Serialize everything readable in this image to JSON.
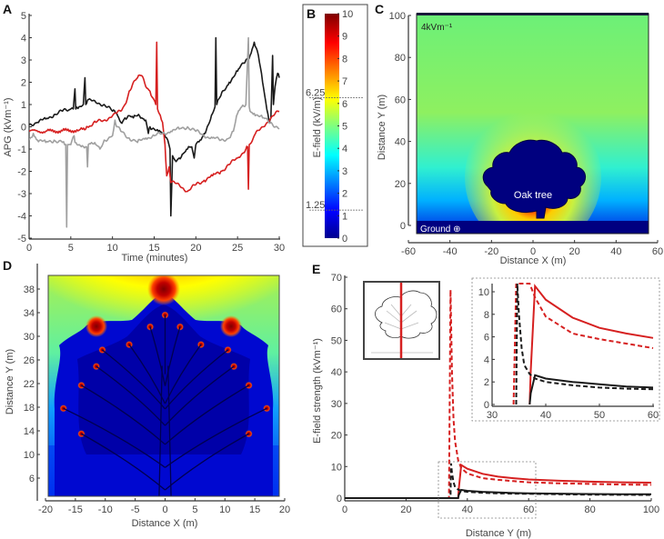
{
  "figure": {
    "panel_labels": [
      "A",
      "B",
      "C",
      "D",
      "E"
    ]
  },
  "chart_data": [
    {
      "panel": "A",
      "type": "line",
      "title": "",
      "xlabel": "Time (minutes)",
      "ylabel": "APG (kVm⁻¹)",
      "xlim": [
        0,
        30
      ],
      "ylim": [
        -5,
        5
      ],
      "xticks": [
        0,
        5,
        10,
        15,
        20,
        25,
        30
      ],
      "yticks": [
        5,
        4,
        3,
        2,
        1,
        0,
        -1,
        -2,
        -3,
        -4,
        -5
      ],
      "series": [
        {
          "name": "black trace",
          "color": "#1a1a1a",
          "x": [
            0,
            1,
            2,
            3,
            4,
            5,
            5.3,
            5.5,
            5.6,
            6,
            6.5,
            6.7,
            6.8,
            7,
            8,
            9,
            10,
            10.5,
            11,
            11.5,
            12,
            12.5,
            13,
            13.5,
            14,
            14.3,
            14.5,
            15,
            15.5,
            16,
            16.5,
            16.9,
            17,
            17.2,
            17.5,
            18,
            18.5,
            19,
            19.5,
            19.8,
            20,
            20.5,
            21,
            21.5,
            22,
            22.3,
            22.4,
            22.5,
            23,
            24,
            25,
            26,
            26.5,
            27,
            27.5,
            28,
            28.5,
            28.8,
            29,
            29.2,
            29.3,
            29.5,
            29.8,
            30
          ],
          "y": [
            0.1,
            0.2,
            0.35,
            0.55,
            0.7,
            0.8,
            0.8,
            1.7,
            0.8,
            0.9,
            1.0,
            2.2,
            1.0,
            1.2,
            1.1,
            1.0,
            0.7,
            0.6,
            0.2,
            0.4,
            0.5,
            0.4,
            0.5,
            0.4,
            0.3,
            -0.3,
            0.0,
            -0.1,
            -0.2,
            -0.3,
            -0.5,
            -1.0,
            -4.0,
            -1.3,
            -1.5,
            -1.4,
            -1.2,
            -1.0,
            -0.9,
            -1.4,
            -0.8,
            -0.6,
            -0.3,
            0.1,
            0.6,
            0.9,
            4.0,
            1.0,
            1.4,
            2.0,
            2.5,
            3.0,
            3.2,
            3.8,
            3.2,
            2.0,
            0.8,
            0.2,
            0.4,
            3.2,
            1.0,
            1.8,
            2.4,
            2.2
          ]
        },
        {
          "name": "red trace",
          "color": "#d62020",
          "x": [
            0,
            2,
            4,
            6,
            6.8,
            7,
            8,
            9,
            10,
            11,
            11.5,
            12,
            12.5,
            13,
            13.5,
            14,
            14.5,
            15,
            15.2,
            15.3,
            15.4,
            15.6,
            16,
            16.3,
            16.5,
            16.8,
            17,
            18,
            19,
            20,
            21,
            22,
            23,
            24,
            25,
            26,
            26.2,
            26.3,
            26.4,
            27,
            28,
            29,
            30
          ],
          "y": [
            -0.2,
            -0.2,
            -0.18,
            -0.15,
            -0.1,
            0.0,
            0.2,
            0.3,
            0.5,
            0.7,
            1.0,
            1.6,
            2.0,
            2.2,
            2.3,
            1.8,
            1.6,
            1.2,
            1.0,
            3.8,
            0.8,
            0.6,
            0.2,
            -0.8,
            -2.2,
            -1.8,
            -2.5,
            -2.6,
            -2.9,
            -2.6,
            -2.4,
            -2.2,
            -2.0,
            -1.7,
            -1.4,
            -1.0,
            -0.9,
            -2.8,
            -0.8,
            -0.4,
            0.0,
            0.4,
            0.7
          ]
        },
        {
          "name": "grey trace",
          "color": "#a0a0a0",
          "x": [
            0,
            0.5,
            1,
            2,
            3,
            4,
            4.4,
            4.5,
            4.6,
            5,
            5.4,
            5.5,
            6,
            6.9,
            7,
            7.1,
            8,
            8.5,
            9,
            10,
            10.3,
            10.5,
            11,
            12,
            13,
            14,
            15,
            16,
            17,
            18,
            19,
            20,
            21,
            22,
            23,
            24,
            24.5,
            25,
            25.5,
            26,
            26.3,
            26.4,
            26.5,
            27,
            28,
            29,
            30
          ],
          "y": [
            -0.6,
            -0.3,
            -0.6,
            -0.7,
            -0.6,
            -0.7,
            -0.8,
            -4.5,
            -0.8,
            -0.8,
            -0.4,
            -0.7,
            -0.8,
            -0.9,
            -1.8,
            -0.8,
            -0.8,
            -1.0,
            -0.6,
            -0.4,
            0.3,
            0.0,
            -0.2,
            -0.5,
            -0.7,
            -0.5,
            -0.4,
            -0.3,
            -0.2,
            -0.1,
            0.0,
            -0.2,
            -0.4,
            -0.5,
            -0.6,
            -0.5,
            -0.2,
            0.6,
            0.9,
            1.0,
            4.0,
            0.9,
            0.7,
            0.6,
            0.4,
            0.2,
            -0.1
          ]
        }
      ]
    },
    {
      "panel": "B",
      "type": "colorbar",
      "ylabel": "E-field (kV/m)",
      "range": [
        0,
        10
      ],
      "ticks": [
        0,
        1,
        2,
        3,
        4,
        5,
        6,
        7,
        8,
        9,
        10
      ],
      "markers": [
        {
          "label": "6.25",
          "value": 6.25
        },
        {
          "label": "1.25",
          "value": 1.25
        }
      ],
      "colormap": "jet"
    },
    {
      "panel": "C",
      "type": "heatmap",
      "xlabel": "Distance X (m)",
      "ylabel": "Distance Y (m)",
      "xlim": [
        -60,
        60
      ],
      "ylim": [
        -5,
        100
      ],
      "xticks": [
        -60,
        -40,
        -20,
        0,
        20,
        40,
        60
      ],
      "yticks": [
        0,
        20,
        40,
        60,
        80,
        100
      ],
      "annotations": [
        "4kVm⁻¹",
        "Oak tree",
        "Ground ⊕"
      ],
      "ambient_field_kV_per_m": 4
    },
    {
      "panel": "D",
      "type": "heatmap",
      "xlabel": "Distance X (m)",
      "ylabel": "Distance Y (m)",
      "xlim": [
        -20,
        20
      ],
      "ylim": [
        2,
        40
      ],
      "xticks": [
        -20,
        -15,
        -10,
        -5,
        0,
        5,
        10,
        15,
        20
      ],
      "yticks": [
        6,
        10,
        14,
        18,
        22,
        26,
        30,
        34,
        38
      ]
    },
    {
      "panel": "E",
      "type": "line",
      "xlabel": "Distance Y (m)",
      "ylabel": "E-field strength (kVm⁻¹)",
      "xlim": [
        0,
        100
      ],
      "ylim": [
        -1,
        70
      ],
      "xticks": [
        0,
        20,
        40,
        60,
        80,
        100
      ],
      "yticks": [
        0,
        10,
        20,
        30,
        40,
        50,
        60,
        70
      ],
      "series": [
        {
          "name": "red solid",
          "color": "#d62020",
          "dash": false,
          "x": [
            0,
            37,
            37.2,
            38,
            40,
            45,
            50,
            55,
            60,
            70,
            80,
            90,
            100
          ],
          "y": [
            0,
            0,
            3,
            10.5,
            9.3,
            7.7,
            6.8,
            6.3,
            5.9,
            5.5,
            5.2,
            5.0,
            4.9
          ]
        },
        {
          "name": "red dashed",
          "color": "#d62020",
          "dash": true,
          "x": [
            0,
            34,
            34.5,
            35,
            35.5,
            36,
            37,
            38,
            40,
            45,
            50,
            55,
            60,
            70,
            80,
            90,
            100
          ],
          "y": [
            0,
            0,
            66,
            40,
            25,
            18,
            12,
            9.5,
            7.8,
            6.3,
            5.8,
            5.4,
            5.0,
            4.7,
            4.5,
            4.3,
            4.2
          ]
        },
        {
          "name": "black solid",
          "color": "#1a1a1a",
          "dash": false,
          "x": [
            0,
            37,
            37.2,
            38,
            40,
            45,
            50,
            55,
            60,
            70,
            80,
            90,
            100
          ],
          "y": [
            0,
            0,
            1,
            2.6,
            2.3,
            2.0,
            1.8,
            1.6,
            1.5,
            1.4,
            1.3,
            1.25,
            1.2
          ]
        },
        {
          "name": "black dashed",
          "color": "#1a1a1a",
          "dash": true,
          "x": [
            0,
            34.5,
            34.7,
            35,
            35.5,
            36,
            37,
            38,
            40,
            45,
            50,
            55,
            60,
            70,
            80,
            90,
            100
          ],
          "y": [
            0,
            0,
            11,
            8,
            5,
            3.5,
            2.7,
            2.3,
            2.0,
            1.7,
            1.5,
            1.4,
            1.35,
            1.2,
            1.1,
            1.05,
            1.0
          ]
        }
      ],
      "zoom_inset": {
        "xlim": [
          30,
          60
        ],
        "ylim": [
          -0.3,
          11
        ],
        "xticks": [
          30,
          40,
          50,
          60
        ],
        "yticks": [
          0,
          2,
          4,
          6,
          8,
          10
        ]
      },
      "zoom_region": {
        "x": [
          30,
          62
        ],
        "y": [
          -5,
          12
        ]
      }
    }
  ]
}
